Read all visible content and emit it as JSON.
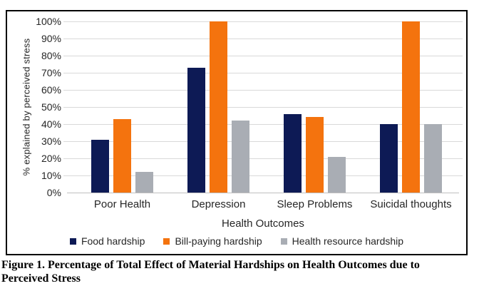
{
  "chart_data": {
    "type": "bar",
    "categories": [
      "Poor Health",
      "Depression",
      "Sleep Problems",
      "Suicidal thoughts"
    ],
    "series": [
      {
        "name": "Food hardship",
        "color": "#0D1A55",
        "values": [
          31,
          73,
          46,
          40
        ]
      },
      {
        "name": "Bill-paying hardship",
        "color": "#F4730E",
        "values": [
          43,
          100,
          44,
          100
        ]
      },
      {
        "name": "Health resource hardship",
        "color": "#A9ADB4",
        "values": [
          12,
          42,
          21,
          40
        ]
      }
    ],
    "xlabel": "Health Outcomes",
    "ylabel": "% explained by perceived stress",
    "ylim": [
      0,
      100
    ],
    "ytick_step": 10,
    "ytick_suffix": "%",
    "grid": true,
    "legend_position": "bottom",
    "colors": {
      "gridline": "#D9D9D9",
      "axis_line": "#BFBFBF",
      "frame_border": "#000000",
      "text": "#262626"
    }
  },
  "figure": {
    "caption_line1": "Figure 1. Percentage of Total Effect of Material Hardships on Health Outcomes due to",
    "caption_line2": "Perceived Stress"
  }
}
